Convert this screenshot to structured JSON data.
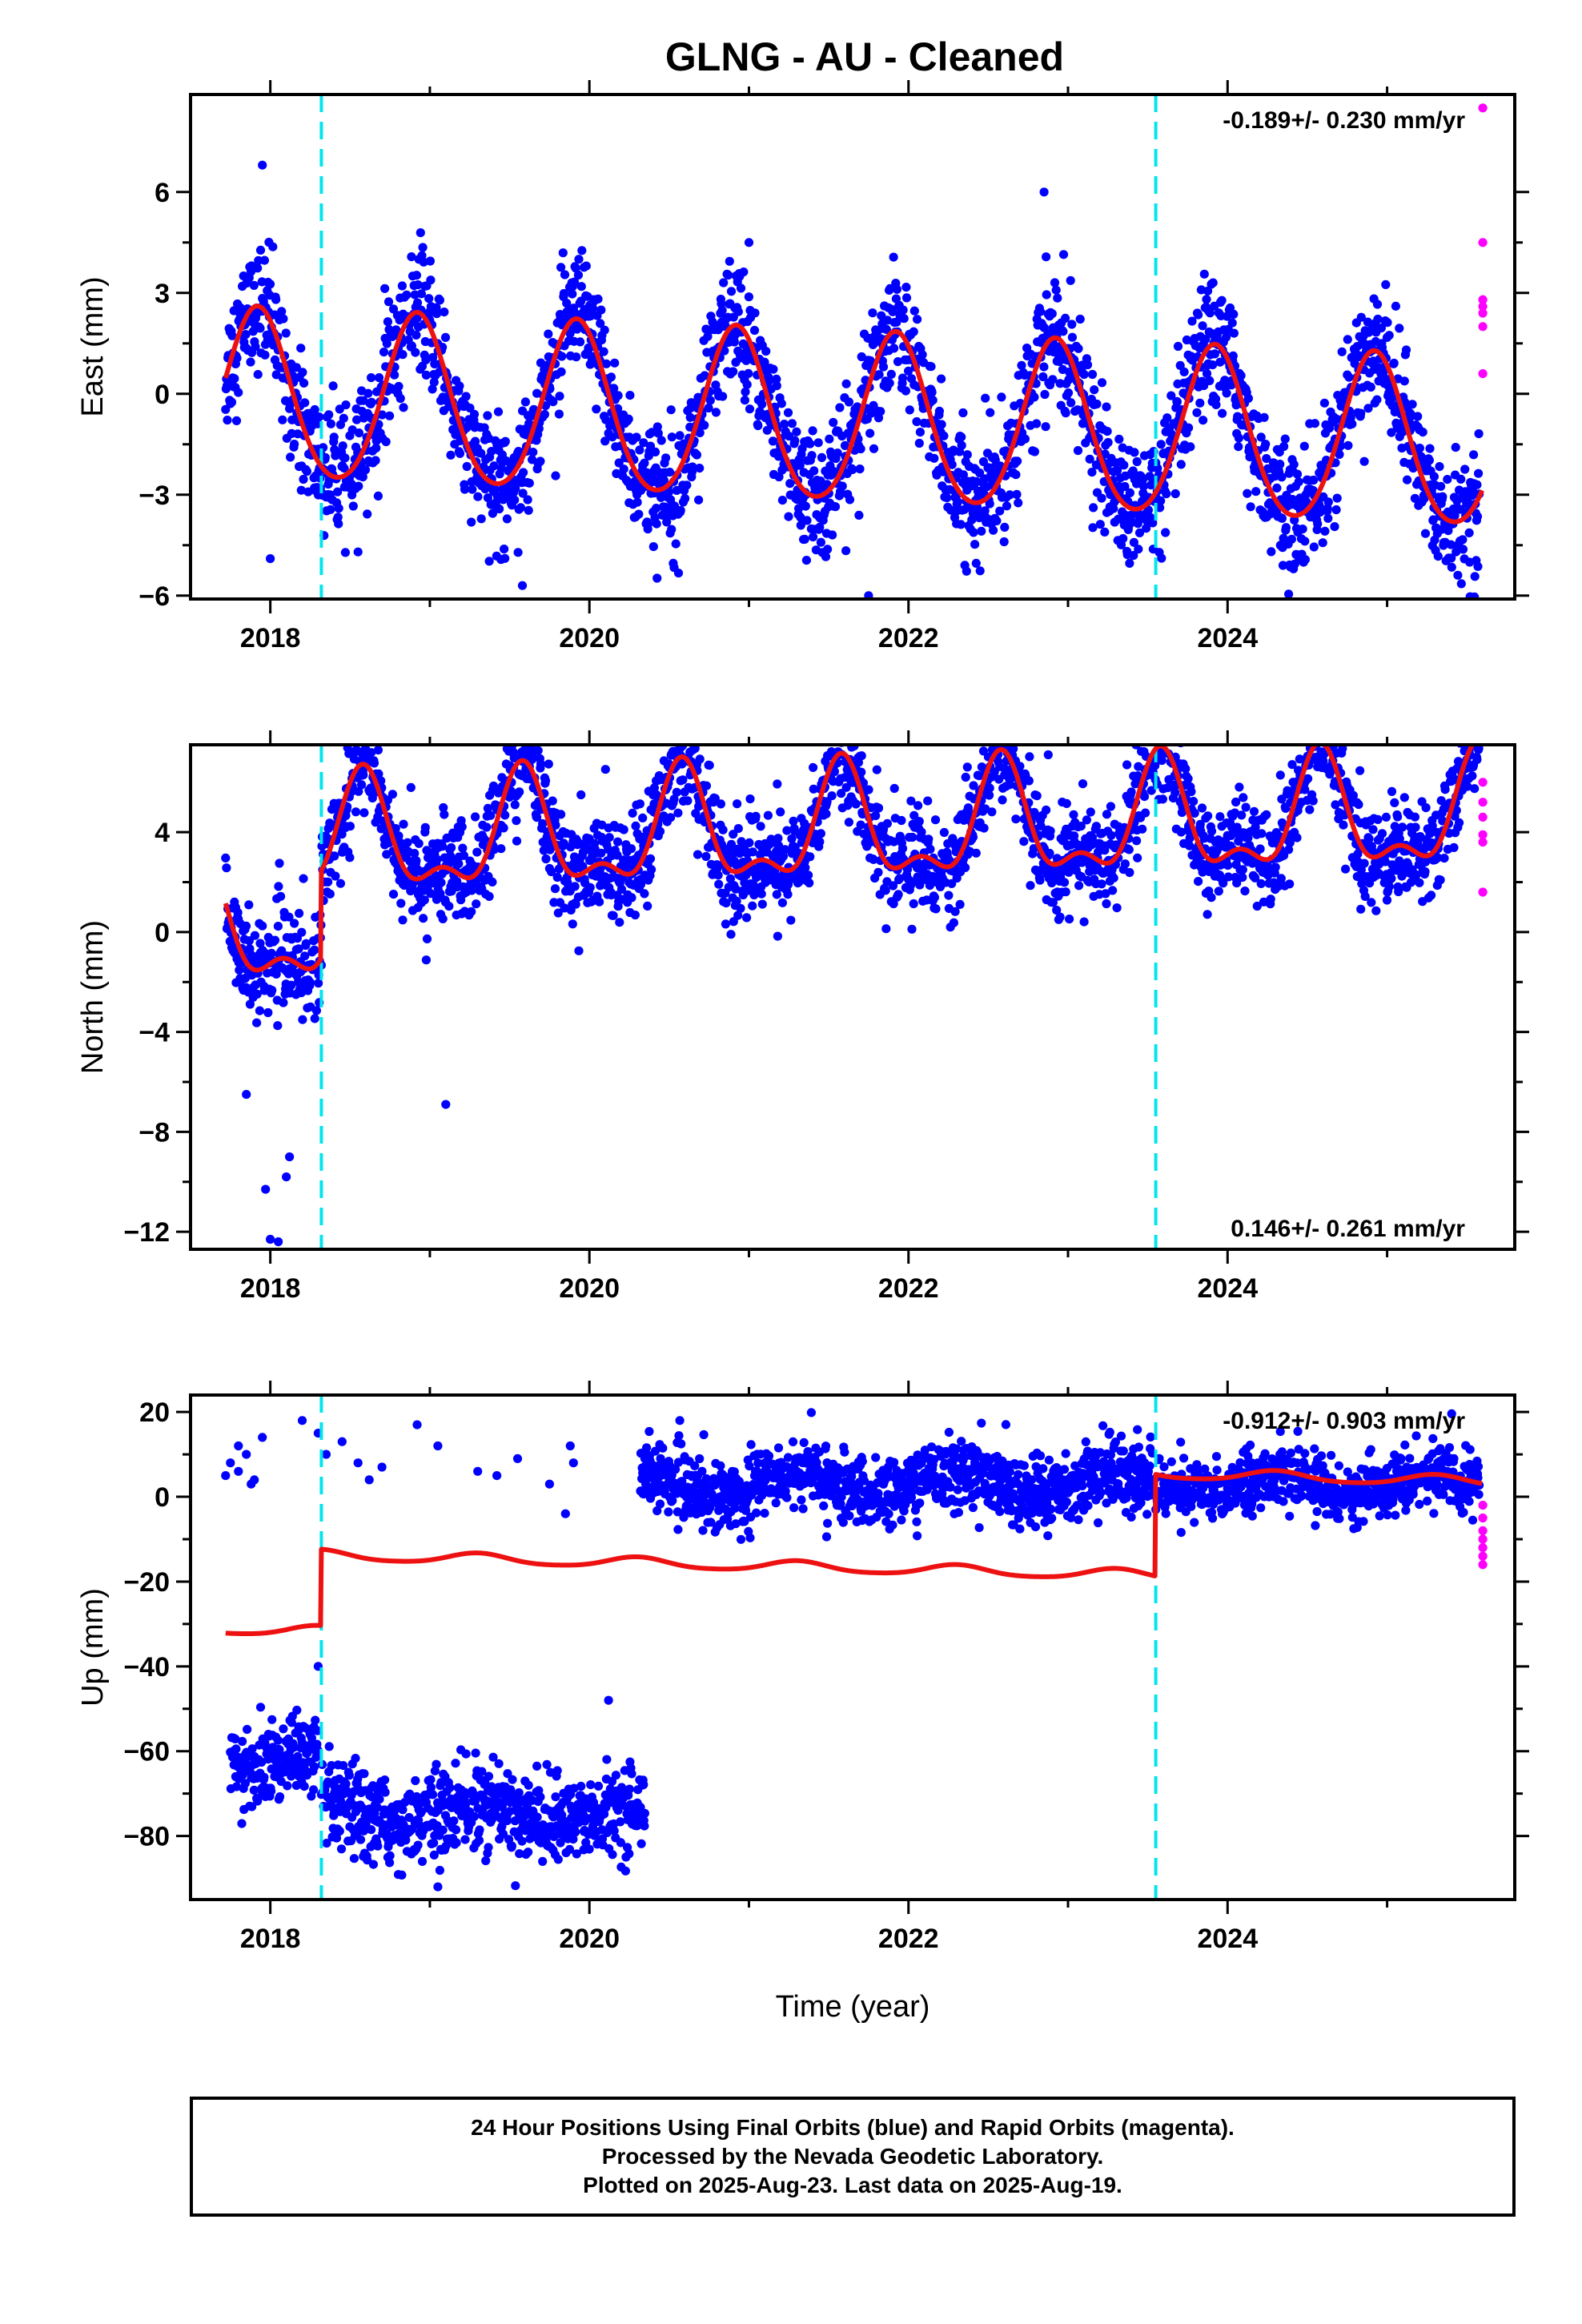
{
  "title": "GLNG  - AU - Cleaned",
  "xlabel": "Time (year)",
  "caption": [
    "24 Hour Positions Using Final Orbits (blue) and Rapid Orbits (magenta).",
    "Processed by the Nevada Geodetic Laboratory.",
    "Plotted on 2025-Aug-23. Last data on 2025-Aug-19."
  ],
  "colors": {
    "final": "#0000ff",
    "rapid": "#ff00ff",
    "model": "#ee1111",
    "offset": "#00e5ee",
    "frame": "#000000"
  },
  "chart_data": [
    {
      "type": "scatter",
      "id": "east",
      "ylabel": "East (mm)",
      "xlim": [
        2017.5,
        2025.8
      ],
      "ylim": [
        -6.1,
        8.9
      ],
      "xticks": [
        2018,
        2020,
        2022,
        2024
      ],
      "yticks": [
        6,
        3,
        0,
        -3,
        -6
      ],
      "ytick_labels": [
        "6",
        "3",
        "0",
        "−3",
        "−6"
      ],
      "rate_text": "-0.189+/- 0.230 mm/yr",
      "rate_position": "top-right",
      "offsets": [
        2018.32,
        2023.55
      ],
      "model": {
        "type": "seasonal",
        "x_range": [
          2017.72,
          2025.6
        ],
        "trend_per_year": -0.189,
        "mean": -0.1,
        "annual_amplitude": 2.5,
        "annual_peak_phase": 0.92,
        "semiannual_amplitude": 0.25,
        "steps": []
      },
      "series": [
        {
          "name": "Final Orbits",
          "color": "#0000ff",
          "x_range": [
            2017.72,
            2025.58
          ],
          "gaps": [],
          "noise_sd": 0.9,
          "outliers": [
            [
              2018.0,
              -4.9
            ],
            [
              2019.58,
              -5.7
            ],
            [
              2021.75,
              -6.0
            ],
            [
              2018.55,
              -4.7
            ],
            [
              2021.0,
              4.5
            ],
            [
              2022.85,
              6.0
            ],
            [
              2017.95,
              6.8
            ]
          ]
        },
        {
          "name": "Rapid Orbits",
          "color": "#ff00ff",
          "points": [
            [
              2025.6,
              8.5
            ],
            [
              2025.6,
              4.5
            ],
            [
              2025.6,
              2.8
            ],
            [
              2025.6,
              2.6
            ],
            [
              2025.6,
              2.4
            ],
            [
              2025.6,
              2.0
            ],
            [
              2025.6,
              0.6
            ]
          ]
        }
      ]
    },
    {
      "type": "scatter",
      "id": "north",
      "ylabel": "North (mm)",
      "xlim": [
        2017.5,
        2025.8
      ],
      "ylim": [
        -12.7,
        7.5
      ],
      "xticks": [
        2018,
        2020,
        2022,
        2024
      ],
      "yticks": [
        4,
        0,
        -4,
        -8,
        -12
      ],
      "ytick_labels": [
        "4",
        "0",
        "−4",
        "−8",
        "−12"
      ],
      "rate_text": "0.146+/- 0.261 mm/yr",
      "rate_position": "bottom-right",
      "offsets": [
        2018.32,
        2023.55
      ],
      "model": {
        "type": "seasonal",
        "x_range": [
          2017.72,
          2025.6
        ],
        "trend_per_year": 0.146,
        "mean": 0.0,
        "annual_amplitude": 2.1,
        "annual_peak_phase": 0.58,
        "semiannual_amplitude": 1.0,
        "steps": [
          [
            2018.32,
            3.5
          ]
        ]
      },
      "series": [
        {
          "name": "Final Orbits",
          "color": "#0000ff",
          "x_range": [
            2017.72,
            2025.58
          ],
          "gaps": [],
          "noise_sd": 1.0,
          "outliers": [
            [
              2017.97,
              -10.3
            ],
            [
              2018.0,
              -12.3
            ],
            [
              2018.05,
              -12.4
            ],
            [
              2018.1,
              -9.8
            ],
            [
              2018.12,
              -9.0
            ],
            [
              2017.85,
              -6.5
            ],
            [
              2019.1,
              -6.9
            ],
            [
              2022.55,
              7.0
            ],
            [
              2023.55,
              7.0
            ],
            [
              2024.55,
              7.0
            ]
          ]
        },
        {
          "name": "Rapid Orbits",
          "color": "#ff00ff",
          "points": [
            [
              2025.6,
              6.0
            ],
            [
              2025.6,
              5.2
            ],
            [
              2025.6,
              4.6
            ],
            [
              2025.6,
              3.9
            ],
            [
              2025.6,
              3.6
            ],
            [
              2025.6,
              1.6
            ]
          ]
        }
      ]
    },
    {
      "type": "scatter",
      "id": "up",
      "ylabel": "Up (mm)",
      "xlim": [
        2017.5,
        2025.8
      ],
      "ylim": [
        -95,
        24
      ],
      "xticks": [
        2018,
        2020,
        2022,
        2024
      ],
      "yticks": [
        20,
        0,
        -20,
        -40,
        -60,
        -80
      ],
      "ytick_labels": [
        "20",
        "0",
        "−20",
        "−40",
        "−60",
        "−80"
      ],
      "rate_text": "-0.912+/- 0.903 mm/yr",
      "rate_position": "top-right",
      "offsets": [
        2018.32,
        2023.55
      ],
      "model": {
        "type": "seasonal",
        "x_range": [
          2017.72,
          2025.6
        ],
        "trend_per_year": -0.912,
        "mean": -31.2,
        "annual_amplitude": 1.2,
        "annual_peak_phase": 0.3,
        "semiannual_amplitude": 0.2,
        "steps": [
          [
            2018.32,
            18.0
          ],
          [
            2023.55,
            24.0
          ]
        ]
      },
      "series": [
        {
          "name": "Final Orbits",
          "color": "#0000ff",
          "segments": [
            {
              "x_range": [
                2017.75,
                2018.3
              ],
              "base": -62,
              "noise_sd": 4.5,
              "annual_amplitude": 2
            },
            {
              "x_range": [
                2018.32,
                2020.35
              ],
              "base": -75,
              "noise_sd": 5,
              "annual_amplitude": 2
            },
            {
              "x_range": [
                2020.32,
                2023.53
              ],
              "base": 3,
              "noise_sd": 4,
              "annual_amplitude": 3
            },
            {
              "x_range": [
                2023.55,
                2025.58
              ],
              "base": 3,
              "noise_sd": 3.5,
              "annual_amplitude": 2
            }
          ],
          "extra_points": [
            [
              2017.75,
              8
            ],
            [
              2017.8,
              6
            ],
            [
              2017.85,
              10
            ],
            [
              2017.9,
              4
            ],
            [
              2017.95,
              14
            ],
            [
              2017.8,
              12
            ],
            [
              2017.88,
              3
            ],
            [
              2017.72,
              5
            ],
            [
              2018.2,
              18
            ],
            [
              2018.3,
              15
            ],
            [
              2018.35,
              10
            ],
            [
              2018.45,
              13
            ],
            [
              2018.55,
              8
            ],
            [
              2018.62,
              4
            ],
            [
              2018.7,
              7
            ],
            [
              2018.92,
              17
            ],
            [
              2019.05,
              12
            ],
            [
              2019.3,
              6
            ],
            [
              2019.42,
              5
            ],
            [
              2019.55,
              9
            ],
            [
              2019.75,
              3
            ],
            [
              2019.85,
              -4
            ],
            [
              2019.88,
              12
            ],
            [
              2019.9,
              8
            ]
          ],
          "outliers": [
            [
              2020.12,
              -48
            ],
            [
              2018.3,
              -40
            ],
            [
              2019.05,
              -92
            ]
          ]
        },
        {
          "name": "Rapid Orbits",
          "color": "#ff00ff",
          "points": [
            [
              2025.6,
              -2
            ],
            [
              2025.6,
              -5
            ],
            [
              2025.6,
              -8
            ],
            [
              2025.6,
              -10
            ],
            [
              2025.6,
              -12
            ],
            [
              2025.6,
              -14
            ],
            [
              2025.6,
              -16
            ]
          ]
        }
      ]
    }
  ]
}
